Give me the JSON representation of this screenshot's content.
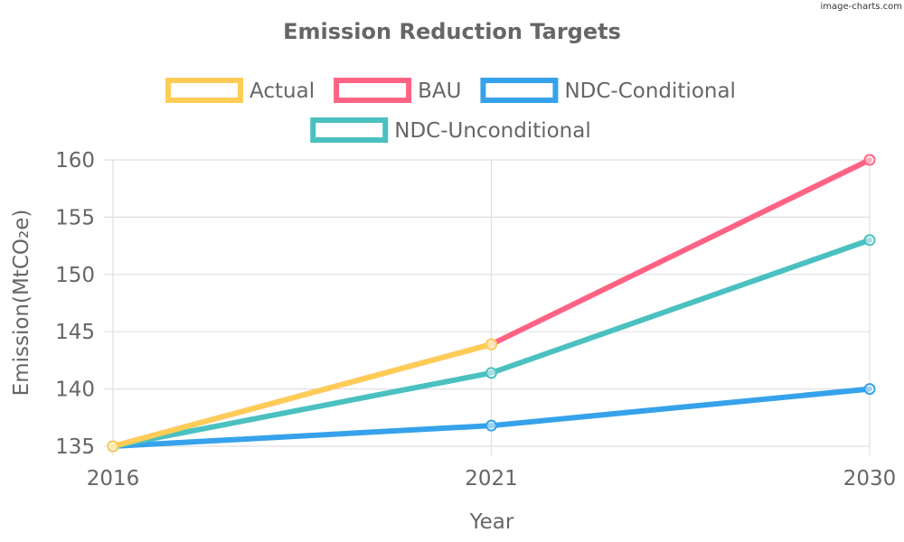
{
  "watermark": "image-charts.com",
  "chart_data": {
    "type": "line",
    "title": "Emission Reduction Targets",
    "xlabel": "Year",
    "ylabel": "Emission(MtCO₂e)",
    "categories": [
      "2016",
      "2021",
      "2030"
    ],
    "ylim": [
      135,
      160
    ],
    "yticks": [
      135,
      140,
      145,
      150,
      155,
      160
    ],
    "grid": true,
    "legend_position": "top",
    "series": [
      {
        "name": "Actual",
        "color": "#ffcd56",
        "values": [
          135,
          143.9,
          null
        ]
      },
      {
        "name": "BAU",
        "color": "#ff6384",
        "values": [
          135,
          143.9,
          160
        ]
      },
      {
        "name": "NDC-Conditional",
        "color": "#36a2eb",
        "values": [
          135,
          136.8,
          140
        ]
      },
      {
        "name": "NDC-Unconditional",
        "color": "#4bc0c0",
        "values": [
          135,
          141.4,
          153
        ]
      }
    ],
    "draw_order": [
      1,
      2,
      3,
      0
    ]
  }
}
